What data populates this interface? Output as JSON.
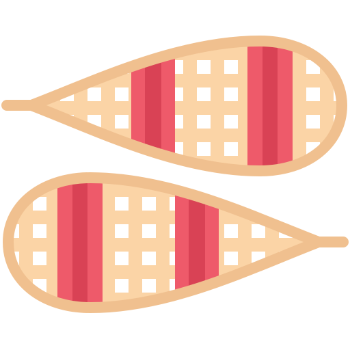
{
  "icon": {
    "name": "snowshoes-icon",
    "count": 2
  },
  "colors": {
    "frame": "#F0C08F",
    "webbing": "#FBD4A6",
    "hole": "#FFFFFF",
    "stripe_light": "#EE5A6A",
    "stripe_dark": "#D94255"
  }
}
